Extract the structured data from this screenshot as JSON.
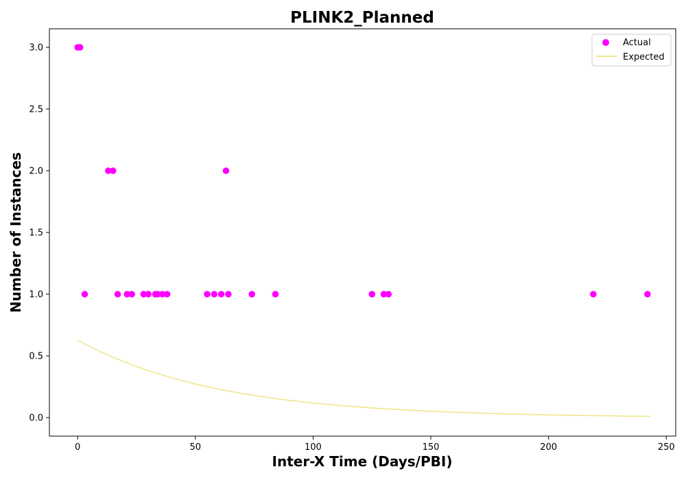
{
  "chart_data": {
    "type": "scatter",
    "title": "PLINK2_Planned",
    "xlabel": "Inter-X Time (Days/PBI)",
    "ylabel": "Number of Instances",
    "xlim": [
      -12,
      254
    ],
    "ylim": [
      -0.15,
      3.15
    ],
    "xticks": [
      0,
      50,
      100,
      150,
      200,
      250
    ],
    "xtick_labels": [
      "0",
      "50",
      "100",
      "150",
      "200",
      "250"
    ],
    "yticks": [
      0.0,
      0.5,
      1.0,
      1.5,
      2.0,
      2.5,
      3.0
    ],
    "ytick_labels": [
      "0.0",
      "0.5",
      "1.0",
      "1.5",
      "2.0",
      "2.5",
      "3.0"
    ],
    "grid": false,
    "legend": "top-right",
    "series": [
      {
        "name": "Actual",
        "kind": "scatter",
        "color": "#ff00ff",
        "x": [
          0,
          1,
          3,
          13,
          15,
          17,
          21,
          23,
          28,
          30,
          33,
          34,
          36,
          38,
          55,
          58,
          61,
          63,
          64,
          74,
          84,
          125,
          130,
          132,
          219,
          242
        ],
        "y": [
          3,
          3,
          1,
          2,
          2,
          1,
          1,
          1,
          1,
          1,
          1,
          1,
          1,
          1,
          1,
          1,
          1,
          2,
          1,
          1,
          1,
          1,
          1,
          1,
          1,
          1
        ]
      },
      {
        "name": "Expected",
        "kind": "line",
        "color": "#f0e68c",
        "x": [
          0,
          10,
          20,
          30,
          40,
          50,
          60,
          70,
          80,
          90,
          100,
          110,
          120,
          130,
          140,
          150,
          160,
          170,
          180,
          190,
          200,
          210,
          220,
          230,
          243
        ],
        "y": [
          0.625,
          0.53,
          0.45,
          0.38,
          0.322,
          0.272,
          0.23,
          0.195,
          0.165,
          0.14,
          0.118,
          0.1,
          0.085,
          0.072,
          0.061,
          0.051,
          0.043,
          0.037,
          0.031,
          0.026,
          0.022,
          0.019,
          0.016,
          0.013,
          0.01
        ]
      }
    ]
  }
}
